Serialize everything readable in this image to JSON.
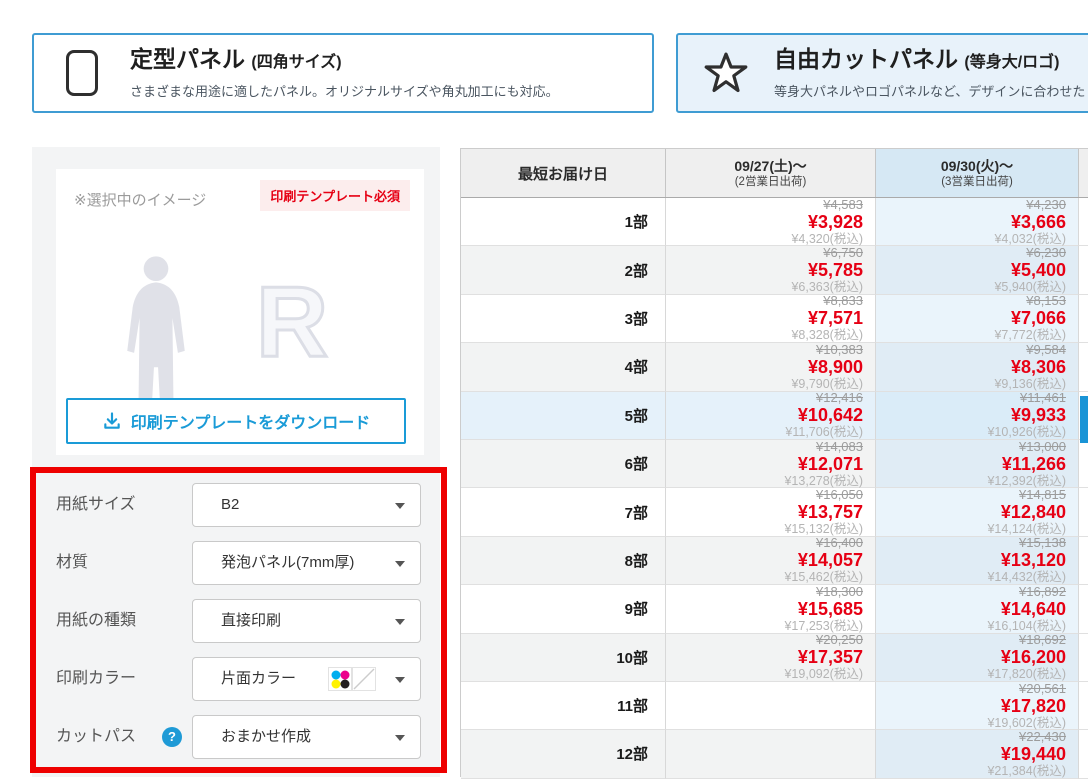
{
  "tabs": [
    {
      "title": "定型パネル",
      "suffix": "(四角サイズ)",
      "subtitle": "さまざまな用途に適したパネル。オリジナルサイズや角丸加工にも対応。"
    },
    {
      "title": "自由カットパネル",
      "suffix": "(等身大/ロゴ)",
      "subtitle": "等身大パネルやロゴパネルなど、デザインに合わせた"
    }
  ],
  "preview": {
    "note": "※選択中のイメージ",
    "badge": "印刷テンプレート必須",
    "letter": "R",
    "download_button": "印刷テンプレートをダウンロード"
  },
  "form": {
    "fields": [
      {
        "label": "用紙サイズ",
        "value": "B2",
        "help": false,
        "color_icon": false
      },
      {
        "label": "材質",
        "value": "発泡パネル(7mm厚)",
        "help": false,
        "color_icon": false
      },
      {
        "label": "用紙の種類",
        "value": "直接印刷",
        "help": false,
        "color_icon": false
      },
      {
        "label": "印刷カラー",
        "value": "片面カラー",
        "help": false,
        "color_icon": true
      },
      {
        "label": "カットパス",
        "value": "おまかせ作成",
        "help": true,
        "color_icon": false
      }
    ]
  },
  "table": {
    "header": {
      "col1": "最短お届け日",
      "col2_date": "09/27(土)〜",
      "col2_sub": "(2営業日出荷)",
      "col3_date": "09/30(火)〜",
      "col3_sub": "(3営業日出荷)"
    },
    "rows": [
      {
        "qty": "1部",
        "c2": {
          "strike": "¥4,583",
          "price": "¥3,928",
          "tax": "¥4,320(税込)"
        },
        "c3": {
          "strike": "¥4,230",
          "price": "¥3,666",
          "tax": "¥4,032(税込)"
        }
      },
      {
        "qty": "2部",
        "c2": {
          "strike": "¥6,750",
          "price": "¥5,785",
          "tax": "¥6,363(税込)"
        },
        "c3": {
          "strike": "¥6,230",
          "price": "¥5,400",
          "tax": "¥5,940(税込)"
        }
      },
      {
        "qty": "3部",
        "c2": {
          "strike": "¥8,833",
          "price": "¥7,571",
          "tax": "¥8,328(税込)"
        },
        "c3": {
          "strike": "¥8,153",
          "price": "¥7,066",
          "tax": "¥7,772(税込)"
        }
      },
      {
        "qty": "4部",
        "c2": {
          "strike": "¥10,383",
          "price": "¥8,900",
          "tax": "¥9,790(税込)"
        },
        "c3": {
          "strike": "¥9,584",
          "price": "¥8,306",
          "tax": "¥9,136(税込)"
        }
      },
      {
        "qty": "5部",
        "c2": {
          "strike": "¥12,416",
          "price": "¥10,642",
          "tax": "¥11,706(税込)"
        },
        "c3": {
          "strike": "¥11,461",
          "price": "¥9,933",
          "tax": "¥10,926(税込)"
        }
      },
      {
        "qty": "6部",
        "c2": {
          "strike": "¥14,083",
          "price": "¥12,071",
          "tax": "¥13,278(税込)"
        },
        "c3": {
          "strike": "¥13,000",
          "price": "¥11,266",
          "tax": "¥12,392(税込)"
        }
      },
      {
        "qty": "7部",
        "c2": {
          "strike": "¥16,050",
          "price": "¥13,757",
          "tax": "¥15,132(税込)"
        },
        "c3": {
          "strike": "¥14,815",
          "price": "¥12,840",
          "tax": "¥14,124(税込)"
        }
      },
      {
        "qty": "8部",
        "c2": {
          "strike": "¥16,400",
          "price": "¥14,057",
          "tax": "¥15,462(税込)"
        },
        "c3": {
          "strike": "¥15,138",
          "price": "¥13,120",
          "tax": "¥14,432(税込)"
        }
      },
      {
        "qty": "9部",
        "c2": {
          "strike": "¥18,300",
          "price": "¥15,685",
          "tax": "¥17,253(税込)"
        },
        "c3": {
          "strike": "¥16,892",
          "price": "¥14,640",
          "tax": "¥16,104(税込)"
        }
      },
      {
        "qty": "10部",
        "c2": {
          "strike": "¥20,250",
          "price": "¥17,357",
          "tax": "¥19,092(税込)"
        },
        "c3": {
          "strike": "¥18,692",
          "price": "¥16,200",
          "tax": "¥17,820(税込)"
        }
      },
      {
        "qty": "11部",
        "c2": null,
        "c3": {
          "strike": "¥20,561",
          "price": "¥17,820",
          "tax": "¥19,602(税込)"
        }
      },
      {
        "qty": "12部",
        "c2": null,
        "c3": {
          "strike": "¥22,430",
          "price": "¥19,440",
          "tax": "¥21,384(税込)"
        }
      }
    ]
  },
  "colors": {
    "accent_blue": "#1a9bd7",
    "tab_border": "#3f9cd3",
    "tab2_bg": "#e8f2fa",
    "price_red": "#e60014",
    "highlight_red_box": "#ee0000",
    "col3_header_bg": "#d6e8f4",
    "col3_cell_bg": "#eaf4fb",
    "badge_bg": "#fceded",
    "cmyk": [
      "#00aeef",
      "#ec008c",
      "#fff200",
      "#231f20"
    ]
  }
}
